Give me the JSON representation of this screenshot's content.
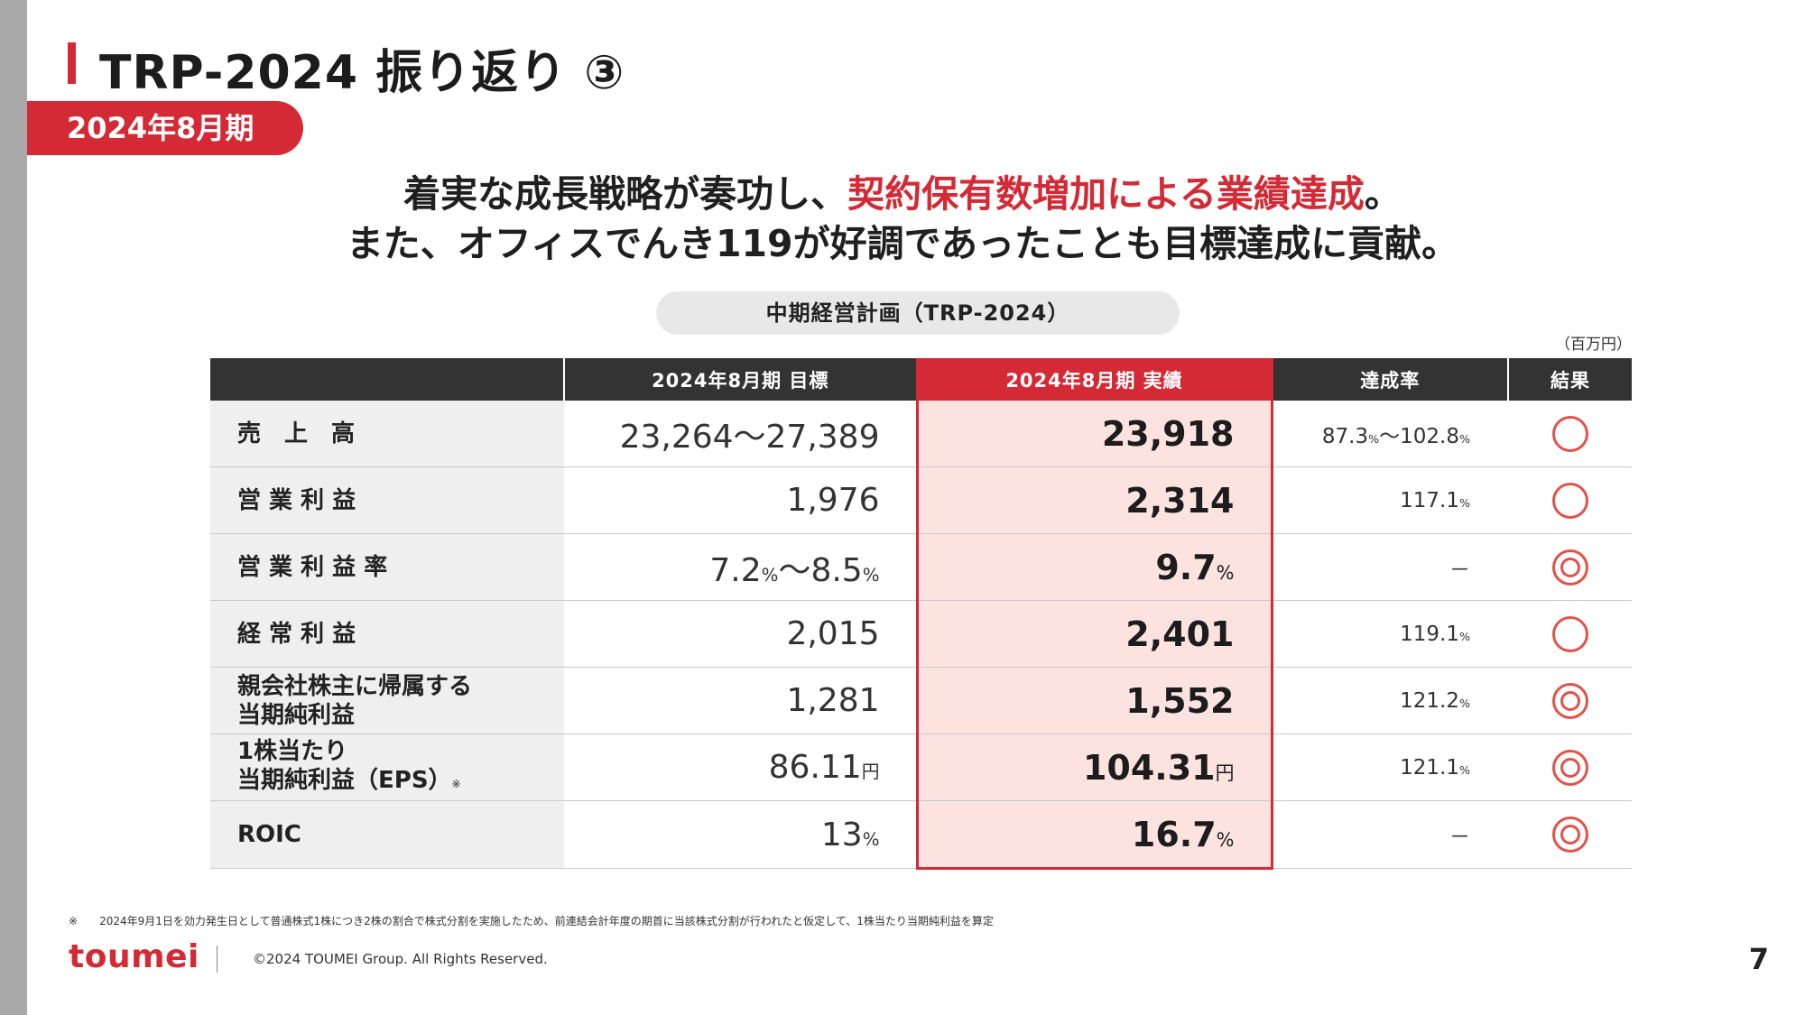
{
  "header": {
    "title": "TRP-2024 振り返り ③",
    "period_badge": "2024年8月期"
  },
  "headline": {
    "line1_pre": "着実な成長戦略が奏功し、",
    "line1_accent": "契約保有数増加による業績達成",
    "line1_post": "。",
    "line2": "また、オフィスでんき119が好調であったことも目標達成に貢献。"
  },
  "plan_label": "中期経営計画（TRP-2024）",
  "unit_label": "（百万円）",
  "table": {
    "headers": [
      "",
      "2024年8月期 目標",
      "2024年8月期 実績",
      "達成率",
      "結果"
    ],
    "rows": [
      {
        "item": "売　上　高",
        "target": "23,264～27,389",
        "actual": "23,918",
        "rate_pre": "87.3",
        "rate_pct1": "%",
        "rate_mid": "～102.8",
        "rate_pct2": "%",
        "result": "○"
      },
      {
        "item": "営 業 利 益",
        "target": "1,976",
        "actual": "2,314",
        "rate": "117.1",
        "rate_pct": "%",
        "result": "○"
      },
      {
        "item": "営 業 利 益 率",
        "target_a": "7.2",
        "target_pct1": "%",
        "target_b": "～8.5",
        "target_pct2": "%",
        "actual": "9.7",
        "actual_unit": "%",
        "rate": "－",
        "result": "◎"
      },
      {
        "item": "経 常 利 益",
        "target": "2,015",
        "actual": "2,401",
        "rate": "119.1",
        "rate_pct": "%",
        "result": "○"
      },
      {
        "item_line1": "親会社株主に帰属する",
        "item_line2": "当期純利益",
        "target": "1,281",
        "actual": "1,552",
        "rate": "121.2",
        "rate_pct": "%",
        "result": "◎"
      },
      {
        "item_line1": "1株当たり",
        "item_line2": "当期純利益（EPS）",
        "item_note": "※",
        "target": "86.11",
        "target_unit": "円",
        "actual": "104.31",
        "actual_unit": "円",
        "rate": "121.1",
        "rate_pct": "%",
        "result": "◎"
      },
      {
        "item": "ROIC",
        "target": "13",
        "target_unit": "%",
        "actual": "16.7",
        "actual_unit": "%",
        "rate": "－",
        "result": "◎"
      }
    ]
  },
  "footnote": {
    "mark": "※",
    "text": "2024年9月1日を効力発生日として普通株式1株につき2株の割合で株式分割を実施したため、前連結会計年度の期首に当該株式分割が行われたと仮定して、1株当たり当期純利益を算定"
  },
  "footer": {
    "logo": "toumei",
    "copyright": "©2024 TOUMEI Group. All Rights Reserved.",
    "page_number": "7"
  },
  "colors": {
    "accent": "#d42a35",
    "header_dark": "#333333",
    "actual_bg": "#fde3e0",
    "mark": "#e2524a"
  }
}
